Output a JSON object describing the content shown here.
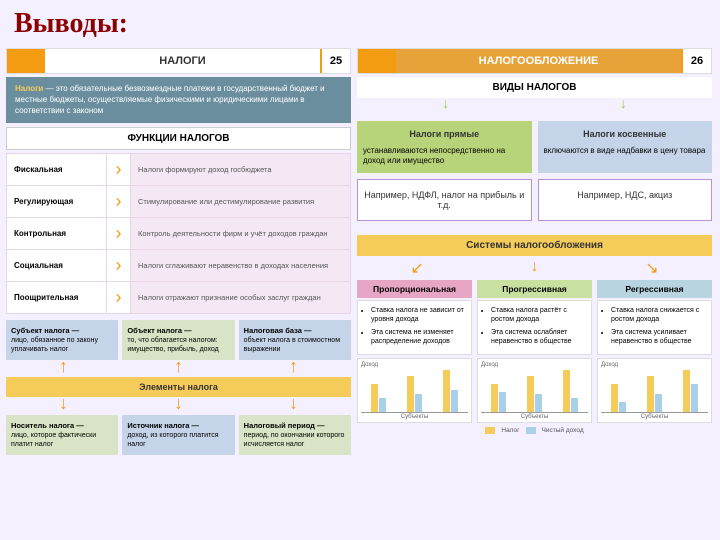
{
  "main_title": "Выводы:",
  "left": {
    "header": {
      "stripe_color": "#f39c12",
      "title": "НАЛОГИ",
      "page": "25"
    },
    "definition": {
      "bg": "#6b8e9f",
      "bold": "Налоги",
      "text": " — это обязательные безвозмездные платежи в государственный бюджет и местные бюджеты, осуществляемые физическими и юридическими лицами в соответствии с законом"
    },
    "functions_title": "ФУНКЦИИ НАЛОГОВ",
    "functions": [
      {
        "name": "Фискальная",
        "desc": "Налоги формируют доход госбюджета"
      },
      {
        "name": "Регулирующая",
        "desc": "Стимулирование или дестимулирование развития"
      },
      {
        "name": "Контрольная",
        "desc": "Контроль деятельности фирм и учёт доходов граждан"
      },
      {
        "name": "Социальная",
        "desc": "Налоги сглаживают неравенство в доходах населения"
      },
      {
        "name": "Поощрительная",
        "desc": "Налоги отражают признание особых заслуг граждан"
      }
    ],
    "boxes_row1": [
      {
        "bg": "#c5d4e8",
        "title": "Субъект налога —",
        "text": "лицо, обязанное по закону уплачивать налог"
      },
      {
        "bg": "#d8e4c5",
        "title": "Объект налога —",
        "text": "то, что облагается налогом: имущество, прибыль, доход"
      },
      {
        "bg": "#c5d4e8",
        "title": "Налоговая база —",
        "text": "объект налога в стоимостном выражении"
      }
    ],
    "elements_bar": {
      "bg": "#f5cc5a",
      "text": "Элементы налога"
    },
    "boxes_row2": [
      {
        "bg": "#d8e4c5",
        "title": "Носитель налога —",
        "text": "лицо, которое фактически платит налог"
      },
      {
        "bg": "#c5d4e8",
        "title": "Источник налога —",
        "text": "доход, из которого платится налог"
      },
      {
        "bg": "#d8e4c5",
        "title": "Налоговый период —",
        "text": "период, по окончании которого исчисляется налог"
      }
    ]
  },
  "right": {
    "header": {
      "stripe_color": "#f39c12",
      "title_bg": "#e8a23a",
      "title": "НАЛОГООБЛОЖЕНИЕ",
      "page": "26"
    },
    "types_title": "ВИДЫ НАЛОГОВ",
    "types": [
      {
        "bg": "#b8d47a",
        "title": "Налоги прямые",
        "text": "устанавливаются непосредственно на доход или имущество"
      },
      {
        "bg": "#c5d4e8",
        "title": "Налоги косвенные",
        "text": "включаются в виде надбавки в цену товара"
      }
    ],
    "examples": [
      {
        "text": "Например, НДФЛ, налог на прибыль и т.д."
      },
      {
        "text": "Например, НДС, акциз"
      }
    ],
    "systems_title": "Системы налогообложения",
    "systems_bg": "#f5cc5a",
    "systems": [
      {
        "name": "Пропорциональная",
        "name_bg": "#e8a6c5",
        "bullets": [
          "Ставка налога не зависит от уровня дохода",
          "Эта система не изменяет распределение доходов"
        ],
        "bars": [
          [
            28,
            14
          ],
          [
            36,
            18
          ],
          [
            42,
            22
          ]
        ]
      },
      {
        "name": "Прогрессивная",
        "name_bg": "#c8e0a0",
        "bullets": [
          "Ставка налога растёт с ростом дохода",
          "Эта система ослабляет неравенство в обществе"
        ],
        "bars": [
          [
            28,
            20
          ],
          [
            36,
            18
          ],
          [
            42,
            14
          ]
        ]
      },
      {
        "name": "Регрессивная",
        "name_bg": "#b8d4e0",
        "bullets": [
          "Ставка налога снижается с ростом дохода",
          "Эта система усиливает неравенство в обществе"
        ],
        "bars": [
          [
            28,
            10
          ],
          [
            36,
            18
          ],
          [
            42,
            28
          ]
        ]
      }
    ],
    "chart": {
      "y_label": "Доход",
      "x_label": "Субъекты",
      "bar_color": "#f5cc5a",
      "net_color": "#a8d0e8",
      "legend": [
        "Налог",
        "Чистый доход"
      ]
    }
  }
}
